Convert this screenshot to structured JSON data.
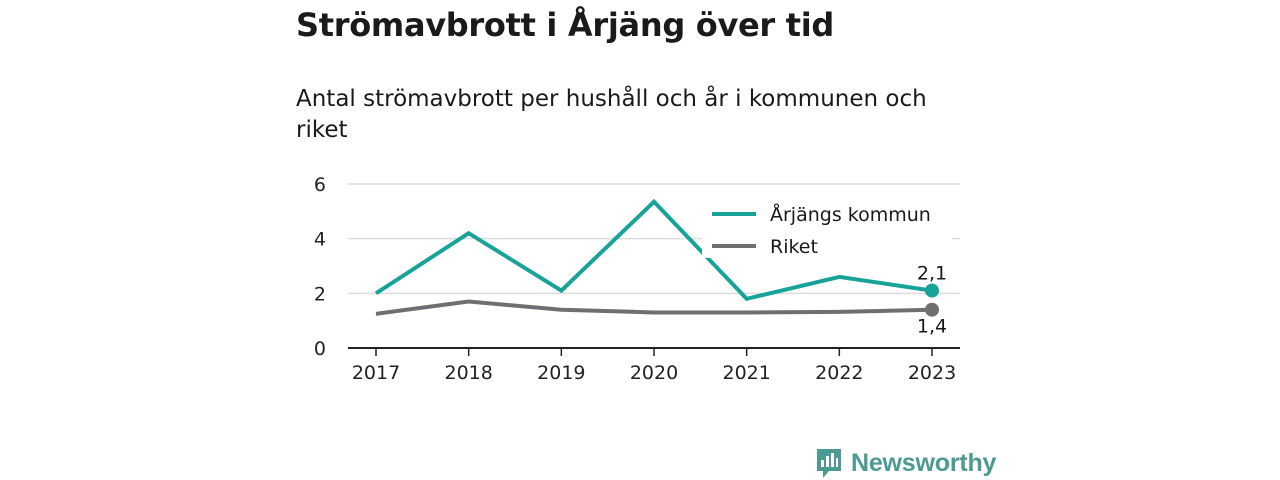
{
  "header": {
    "title": "Strömavbrott i Årjäng över tid",
    "subtitle": "Antal strömavbrott per hushåll och år i kommunen och riket"
  },
  "chart_data": {
    "type": "line",
    "x": [
      "2017",
      "2018",
      "2019",
      "2020",
      "2021",
      "2022",
      "2023"
    ],
    "series": [
      {
        "name": "Årjängs kommun",
        "color": "#17a398",
        "values": [
          2.0,
          4.2,
          2.1,
          5.35,
          1.8,
          2.6,
          2.1
        ],
        "end_label": "2,1"
      },
      {
        "name": "Riket",
        "color": "#6f6e73",
        "values": [
          1.25,
          1.7,
          1.4,
          1.3,
          1.3,
          1.32,
          1.4
        ],
        "end_label": "1,4"
      }
    ],
    "ylim": [
      0,
      6
    ],
    "yticks": [
      "0",
      "2",
      "4",
      "6"
    ],
    "grid": true,
    "legend": "top-right",
    "xlabel": "",
    "ylabel": ""
  },
  "brand": {
    "name": "Newsworthy",
    "icon": "newsworthy-logo-icon",
    "color": "#4d9a94"
  }
}
